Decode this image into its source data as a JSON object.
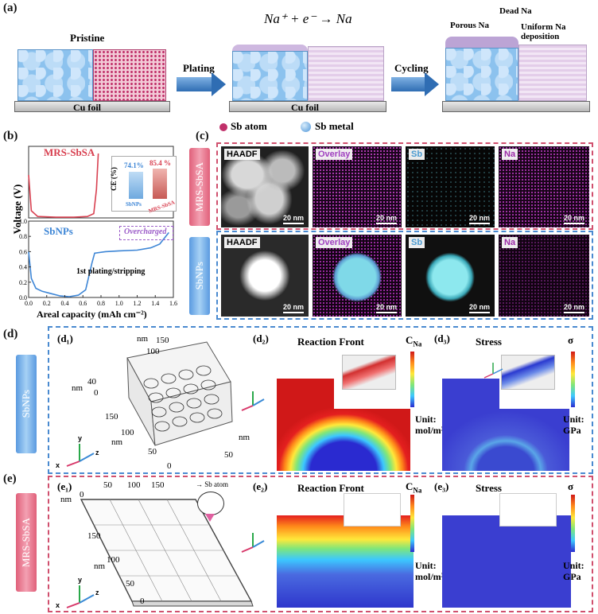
{
  "panel_a": {
    "label": "(a)",
    "pristine": "Pristine",
    "plating": "Plating",
    "cycling": "Cycling",
    "reaction": "Na⁺ + e⁻ → Na",
    "cu_foil": "Cu foil",
    "porous_na": "Porous Na",
    "dead_na": "Dead Na",
    "uniform_na": "Uniform Na deposition",
    "legend_sb_atom": "Sb atom",
    "legend_sb_metal": "Sb metal",
    "colors": {
      "sb_atom": "#c0306a",
      "sb_metal": "#5aa2e0"
    }
  },
  "panel_b": {
    "label": "(b)",
    "ylabel": "Voltage (V)",
    "xlabel": "Areal capacity (mAh cm⁻²)",
    "series_top_name": "MRS-SbSA",
    "series_bottom_name": "SbNPs",
    "overcharged": "Overcharged",
    "plating_stripping": "1st plating/stripping",
    "inset": {
      "ylabel": "CE (%)",
      "bars": [
        {
          "name": "SbNPs",
          "value": 74.1,
          "label": "74.1%"
        },
        {
          "name": "MRS-SbSA",
          "value": 85.4,
          "label": "85.4 %"
        }
      ]
    }
  },
  "chart_data": {
    "type": "line",
    "xlabel": "Areal capacity (mAh cm⁻²)",
    "ylabel": "Voltage (V)",
    "xlim": [
      0,
      1.6
    ],
    "ylim": [
      0,
      1.0
    ],
    "xticks": [
      "0.0",
      "0.2",
      "0.4",
      "0.6",
      "0.8",
      "1.0",
      "1.2",
      "1.4",
      "1.6"
    ],
    "yticks": [
      "0.0",
      "0.2",
      "0.4",
      "0.6",
      "0.8",
      "1.0"
    ],
    "series": [
      {
        "name": "SbNPs",
        "color": "#3e86d6",
        "points": [
          [
            0,
            0.6
          ],
          [
            0.03,
            0.25
          ],
          [
            0.08,
            0.12
          ],
          [
            0.15,
            0.08
          ],
          [
            0.25,
            0.05
          ],
          [
            0.35,
            0.02
          ],
          [
            0.45,
            0.01
          ],
          [
            0.55,
            0.03
          ],
          [
            0.63,
            0.1
          ],
          [
            0.7,
            0.45
          ],
          [
            0.73,
            0.58
          ],
          [
            0.85,
            0.6
          ],
          [
            1.0,
            0.61
          ],
          [
            1.2,
            0.62
          ],
          [
            1.35,
            0.65
          ],
          [
            1.45,
            0.7
          ],
          [
            1.55,
            0.85
          ]
        ]
      },
      {
        "name": "MRS-SbSA",
        "color": "#d84050",
        "points": [
          [
            0,
            0.6
          ],
          [
            0.03,
            0.1
          ],
          [
            0.1,
            0.02
          ],
          [
            0.3,
            0.01
          ],
          [
            0.5,
            0.01
          ],
          [
            0.65,
            0.02
          ],
          [
            0.72,
            0.06
          ],
          [
            0.75,
            0.4
          ],
          [
            0.77,
            0.9
          ]
        ]
      }
    ]
  },
  "panel_c": {
    "label": "(c)",
    "row_top": "MRS-SbSA",
    "row_bottom": "SbNPs",
    "tiles": [
      "HAADF",
      "Overlay",
      "Sb",
      "Na"
    ],
    "scale": "20 nm"
  },
  "panel_d": {
    "label": "(d)",
    "side": "SbNPs",
    "d1": "(d₁)",
    "d2": "(d₂)",
    "d3": "(d₃)",
    "reaction_front": "Reaction Front",
    "stress": "Stress",
    "cna": "C",
    "cna_sub": "Na",
    "sigma": "σ",
    "unit_conc": "Unit:",
    "unit_conc2": "mol/m³",
    "unit_stress": "Unit:",
    "unit_stress2": "GPa",
    "nm_labels": [
      "nm",
      "150",
      "100",
      "nm",
      "40",
      "0",
      "150",
      "100",
      "nm",
      "50",
      "0",
      "50",
      "nm"
    ]
  },
  "panel_e": {
    "label": "(e)",
    "side": "MRS-SbSA",
    "e1": "(e₁)",
    "e2": "(e₂)",
    "e3": "(e₃)",
    "reaction_front": "Reaction Front",
    "stress": "Stress",
    "cna": "C",
    "cna_sub": "Na",
    "sigma": "σ",
    "unit_conc": "Unit:",
    "unit_conc2": "mol/m³",
    "unit_stress": "Unit:",
    "unit_stress2": "GPa",
    "sb_atom": "Sb atom",
    "nm_labels": [
      "nm",
      "0",
      "50",
      "100",
      "150",
      "150",
      "100",
      "nm",
      "50",
      "0"
    ]
  },
  "axes": {
    "x": "x",
    "y": "y",
    "z": "z"
  }
}
